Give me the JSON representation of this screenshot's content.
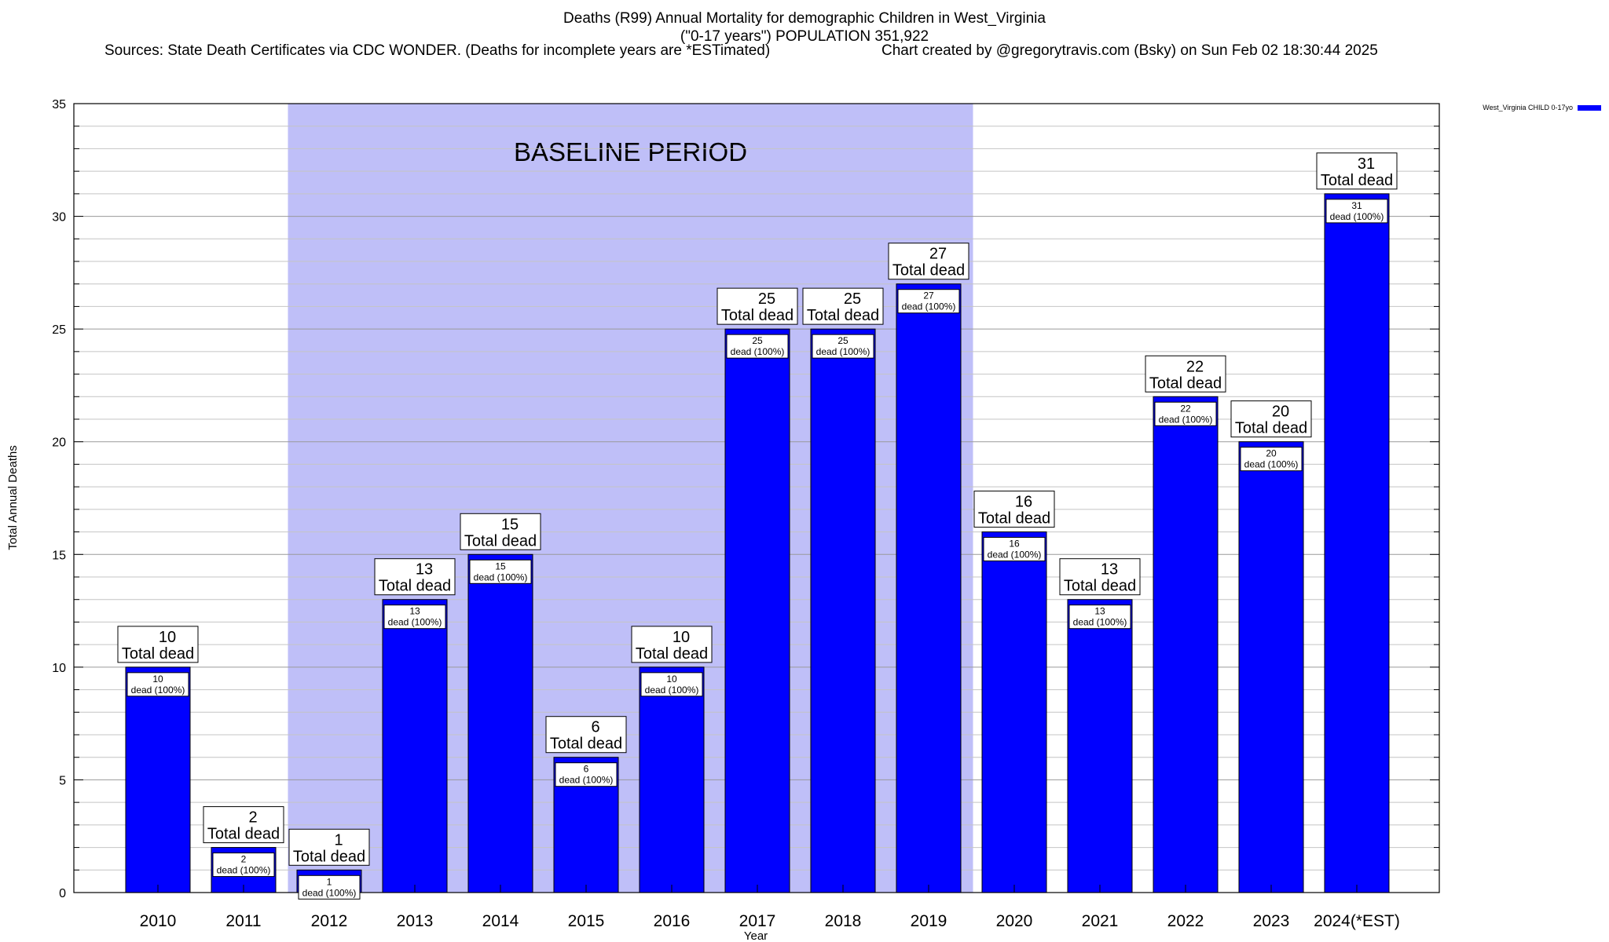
{
  "header": {
    "title_line1": "Deaths (R99) Annual Mortality for demographic Children in West_Virginia",
    "title_line2": "(\"0-17 years\") POPULATION 351,922",
    "sources": "Sources: State Death Certificates via CDC WONDER. (Deaths for incomplete years are *ESTimated)",
    "credit": "Chart created by @gregorytravis.com (Bsky) on Sun Feb 02 18:30:44 2025"
  },
  "chart_data": {
    "type": "bar",
    "categories": [
      "2010",
      "2011",
      "2012",
      "2013",
      "2014",
      "2015",
      "2016",
      "2017",
      "2018",
      "2019",
      "2020",
      "2021",
      "2022",
      "2023",
      "2024(*EST)"
    ],
    "series": [
      {
        "name": "West_Virginia CHILD 0-17yo",
        "color": "#0000ff",
        "values": [
          10,
          2,
          1,
          13,
          15,
          6,
          10,
          25,
          25,
          27,
          16,
          13,
          22,
          20,
          31
        ]
      }
    ],
    "total_label_suffix": "Total dead",
    "inner_label_suffix": "dead (100%)",
    "xlabel": "Year",
    "ylabel": "Total Annual Deaths",
    "ylim": [
      0,
      35
    ],
    "yticks": [
      0,
      5,
      10,
      15,
      20,
      25,
      30,
      35
    ],
    "grid": true,
    "legend_position": "top-right",
    "baseline": {
      "label": "BASELINE PERIOD",
      "start_category": "2012",
      "end_category": "2019",
      "color": "#bfbff8"
    }
  }
}
